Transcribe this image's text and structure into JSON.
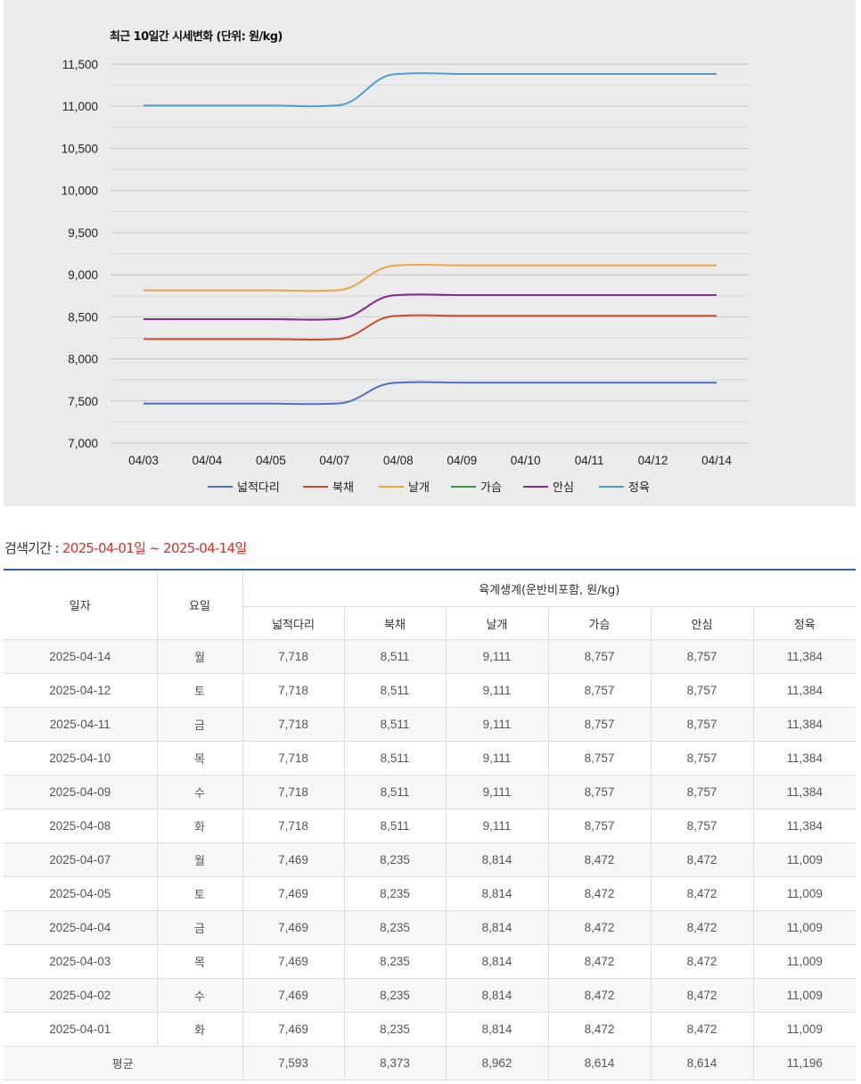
{
  "chart_data": {
    "type": "line",
    "title": "최근 10일간 시세변화 (단위: 원/kg)",
    "categories": [
      "04/03",
      "04/04",
      "04/05",
      "04/07",
      "04/08",
      "04/09",
      "04/10",
      "04/11",
      "04/12",
      "04/14"
    ],
    "ylim": [
      7000,
      11500
    ],
    "yticks": [
      7000,
      7500,
      8000,
      8500,
      9000,
      9500,
      10000,
      10500,
      11000,
      11500
    ],
    "ytick_labels": [
      "7,000",
      "7,500",
      "8,000",
      "8,500",
      "9,000",
      "9,500",
      "10,000",
      "10,500",
      "11,000",
      "11,500"
    ],
    "grid": true,
    "legend_position": "bottom",
    "series": [
      {
        "name": "넓적다리",
        "color": "#4a6fcf",
        "values": [
          7469,
          7469,
          7469,
          7469,
          7718,
          7718,
          7718,
          7718,
          7718,
          7718
        ]
      },
      {
        "name": "북채",
        "color": "#cf4a2a",
        "values": [
          8235,
          8235,
          8235,
          8235,
          8511,
          8511,
          8511,
          8511,
          8511,
          8511
        ]
      },
      {
        "name": "날개",
        "color": "#f0a33e",
        "values": [
          8814,
          8814,
          8814,
          8814,
          9111,
          9111,
          9111,
          9111,
          9111,
          9111
        ]
      },
      {
        "name": "가슴",
        "color": "#3d9a3d",
        "values": [
          8472,
          8472,
          8472,
          8472,
          8757,
          8757,
          8757,
          8757,
          8757,
          8757
        ]
      },
      {
        "name": "안심",
        "color": "#8a2a96",
        "values": [
          8472,
          8472,
          8472,
          8472,
          8757,
          8757,
          8757,
          8757,
          8757,
          8757
        ]
      },
      {
        "name": "정육",
        "color": "#4a9fcf",
        "values": [
          11009,
          11009,
          11009,
          11009,
          11384,
          11384,
          11384,
          11384,
          11384,
          11384
        ]
      }
    ]
  },
  "search": {
    "label": "검색기간 : ",
    "range": "2025-04-01일 ~ 2025-04-14일"
  },
  "table": {
    "col_date": "일자",
    "col_weekday": "요일",
    "group_header": "육계생계(운반비포함, 원/kg)",
    "parts": [
      "넓적다리",
      "북채",
      "날개",
      "가슴",
      "안심",
      "정육"
    ],
    "rows": [
      {
        "date": "2025-04-14",
        "weekday": "월",
        "values": [
          "7,718",
          "8,511",
          "9,111",
          "8,757",
          "8,757",
          "11,384"
        ]
      },
      {
        "date": "2025-04-12",
        "weekday": "토",
        "values": [
          "7,718",
          "8,511",
          "9,111",
          "8,757",
          "8,757",
          "11,384"
        ]
      },
      {
        "date": "2025-04-11",
        "weekday": "금",
        "values": [
          "7,718",
          "8,511",
          "9,111",
          "8,757",
          "8,757",
          "11,384"
        ]
      },
      {
        "date": "2025-04-10",
        "weekday": "목",
        "values": [
          "7,718",
          "8,511",
          "9,111",
          "8,757",
          "8,757",
          "11,384"
        ]
      },
      {
        "date": "2025-04-09",
        "weekday": "수",
        "values": [
          "7,718",
          "8,511",
          "9,111",
          "8,757",
          "8,757",
          "11,384"
        ]
      },
      {
        "date": "2025-04-08",
        "weekday": "화",
        "values": [
          "7,718",
          "8,511",
          "9,111",
          "8,757",
          "8,757",
          "11,384"
        ]
      },
      {
        "date": "2025-04-07",
        "weekday": "월",
        "values": [
          "7,469",
          "8,235",
          "8,814",
          "8,472",
          "8,472",
          "11,009"
        ]
      },
      {
        "date": "2025-04-05",
        "weekday": "토",
        "values": [
          "7,469",
          "8,235",
          "8,814",
          "8,472",
          "8,472",
          "11,009"
        ]
      },
      {
        "date": "2025-04-04",
        "weekday": "금",
        "values": [
          "7,469",
          "8,235",
          "8,814",
          "8,472",
          "8,472",
          "11,009"
        ]
      },
      {
        "date": "2025-04-03",
        "weekday": "목",
        "values": [
          "7,469",
          "8,235",
          "8,814",
          "8,472",
          "8,472",
          "11,009"
        ]
      },
      {
        "date": "2025-04-02",
        "weekday": "수",
        "values": [
          "7,469",
          "8,235",
          "8,814",
          "8,472",
          "8,472",
          "11,009"
        ]
      },
      {
        "date": "2025-04-01",
        "weekday": "화",
        "values": [
          "7,469",
          "8,235",
          "8,814",
          "8,472",
          "8,472",
          "11,009"
        ]
      }
    ],
    "average": {
      "label": "평균",
      "values": [
        "7,593",
        "8,373",
        "8,962",
        "8,614",
        "8,614",
        "11,196"
      ]
    }
  }
}
